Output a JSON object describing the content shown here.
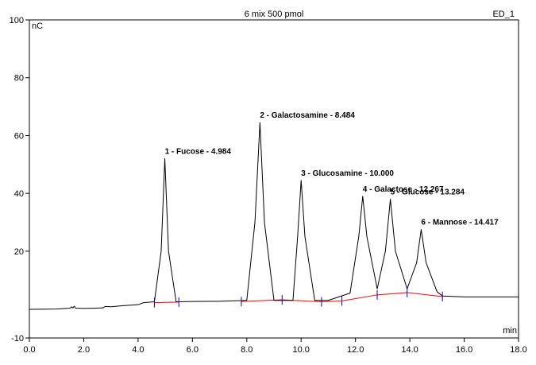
{
  "chart_data": {
    "type": "line",
    "title": "6 mix 500 pmol",
    "detector": "ED_1",
    "y_unit": "nC",
    "x_unit": "min",
    "xlim": [
      0,
      18
    ],
    "ylim": [
      -10,
      100
    ],
    "x_ticks": [
      "0.0",
      "2.0",
      "4.0",
      "6.0",
      "8.0",
      "10.0",
      "12.0",
      "14.0",
      "16.0",
      "18.0"
    ],
    "y_ticks": [
      "-10",
      "20",
      "40",
      "60",
      "80",
      "100"
    ],
    "series": [
      {
        "x": [
          0,
          1.0,
          1.5,
          1.55,
          1.6,
          1.65,
          1.7,
          2.0,
          2.7,
          2.8,
          3.0,
          3.5,
          4.0,
          4.2,
          4.6,
          4.85,
          4.984,
          5.12,
          5.4,
          6.0,
          7.0,
          8.0,
          8.3,
          8.484,
          8.65,
          9.0,
          9.7,
          9.87,
          10.0,
          10.14,
          10.5,
          11.0,
          11.8,
          12.12,
          12.267,
          12.42,
          12.8,
          13.1,
          13.284,
          13.47,
          13.9,
          14.25,
          14.417,
          14.6,
          15.0,
          15.2,
          16.0,
          18.0
        ],
        "y": [
          -0.1,
          0,
          0.3,
          0.8,
          0.4,
          1.0,
          0.3,
          0.2,
          0.4,
          0.9,
          0.8,
          1.2,
          1.5,
          2.2,
          2.5,
          20,
          52,
          20,
          2.5,
          2.6,
          2.7,
          3.0,
          30,
          64.5,
          30,
          3.0,
          3.0,
          25,
          44.5,
          25,
          3.0,
          3.0,
          5.5,
          25,
          39,
          25,
          7,
          20,
          38,
          20,
          7,
          16,
          27.5,
          16,
          6,
          4.5,
          4.2,
          4.2
        ]
      }
    ],
    "baselines": [
      {
        "x": [
          4.6,
          5.5
        ],
        "y": [
          2.2,
          2.4
        ]
      },
      {
        "x": [
          7.8,
          9.3,
          10.75,
          11.5,
          12.8,
          13.9,
          15.2
        ],
        "y": [
          2.6,
          3.2,
          2.5,
          2.8,
          4.9,
          5.7,
          4.3
        ]
      }
    ],
    "integration_ticks": [
      4.6,
      5.5,
      7.8,
      9.3,
      10.75,
      11.5,
      12.8,
      13.9,
      15.2
    ],
    "peaks": [
      {
        "x": 4.984,
        "y": 52,
        "label": "1 - Fucose - 4.984"
      },
      {
        "x": 8.484,
        "y": 64.5,
        "label": "2 - Galactosamine - 8.484"
      },
      {
        "x": 10.0,
        "y": 44.5,
        "label": "3 - Glucosamine - 10.000"
      },
      {
        "x": 12.267,
        "y": 39,
        "label": "4 - Galactose - 12.267"
      },
      {
        "x": 13.284,
        "y": 38,
        "label": "5 - Glucose - 13.284"
      },
      {
        "x": 14.417,
        "y": 27.5,
        "label": "6 - Mannose - 14.417"
      }
    ],
    "colors": {
      "trace": "#000000",
      "baseline": "#ff0000",
      "tick": "#0000cc",
      "frame": "#000000"
    },
    "grid": false
  }
}
